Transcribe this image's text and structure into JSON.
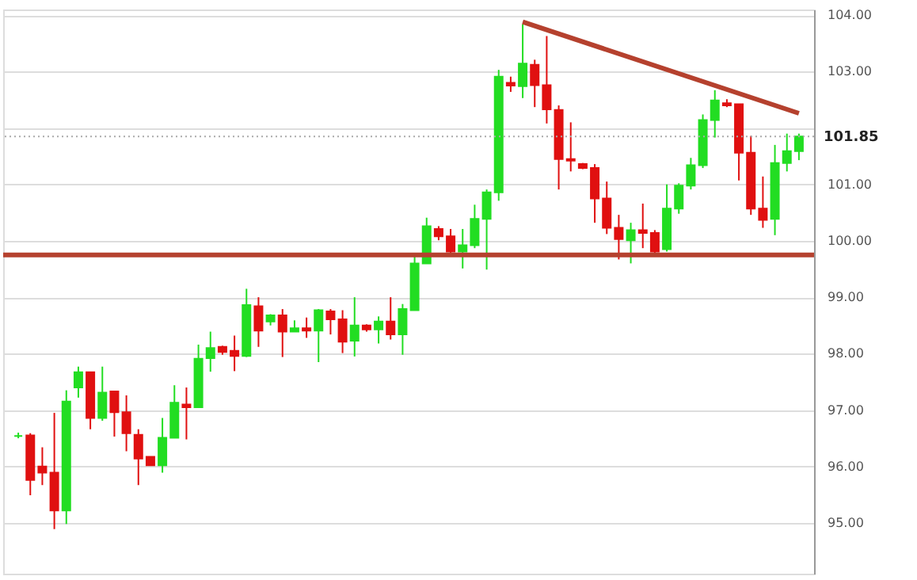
{
  "chart_data": {
    "type": "candlestick",
    "categories": [
      null,
      null,
      null,
      null,
      null,
      null,
      null,
      null,
      null,
      null,
      null,
      null,
      null,
      null,
      null,
      null,
      null,
      null,
      null,
      null,
      null,
      null,
      null,
      null,
      null,
      null,
      null,
      null,
      null,
      null,
      null,
      null,
      null,
      null,
      null,
      null,
      null,
      null,
      null,
      null,
      null,
      null,
      null,
      null,
      null,
      null,
      null,
      null,
      null,
      null,
      null,
      null,
      null,
      null,
      null,
      null,
      null,
      null,
      null,
      null,
      null,
      null,
      null,
      null,
      null,
      null
    ],
    "ohlc": [
      [
        96.54,
        96.6,
        96.5,
        96.54
      ],
      [
        96.55,
        96.59,
        95.49,
        95.76
      ],
      [
        96.0,
        96.34,
        95.67,
        95.89
      ],
      [
        95.89,
        96.95,
        94.89,
        95.22
      ],
      [
        95.22,
        97.35,
        94.98,
        97.15
      ],
      [
        97.4,
        97.77,
        97.22,
        97.67
      ],
      [
        97.67,
        97.67,
        96.66,
        96.86
      ],
      [
        96.86,
        97.77,
        96.81,
        97.31
      ],
      [
        97.33,
        97.33,
        96.53,
        96.96
      ],
      [
        96.96,
        97.26,
        96.27,
        96.59
      ],
      [
        96.56,
        96.66,
        95.67,
        96.14
      ],
      [
        96.17,
        96.17,
        96.02,
        96.02
      ],
      [
        96.02,
        96.86,
        95.89,
        96.51
      ],
      [
        96.51,
        97.44,
        96.51,
        97.13
      ],
      [
        97.1,
        97.4,
        96.48,
        97.05
      ],
      [
        97.05,
        98.16,
        97.05,
        97.91
      ],
      [
        97.92,
        98.39,
        97.68,
        98.1
      ],
      [
        98.12,
        98.14,
        97.98,
        98.03
      ],
      [
        98.05,
        98.32,
        97.69,
        97.96
      ],
      [
        97.96,
        99.15,
        97.94,
        98.86
      ],
      [
        98.84,
        99.0,
        98.12,
        98.41
      ],
      [
        98.57,
        98.7,
        98.5,
        98.68
      ],
      [
        98.68,
        98.79,
        97.94,
        98.39
      ],
      [
        98.39,
        98.59,
        98.39,
        98.45
      ],
      [
        98.45,
        98.64,
        98.28,
        98.41
      ],
      [
        98.41,
        98.79,
        97.85,
        98.77
      ],
      [
        98.75,
        98.79,
        98.34,
        98.61
      ],
      [
        98.61,
        98.77,
        98.01,
        98.21
      ],
      [
        98.23,
        99.0,
        97.95,
        98.5
      ],
      [
        98.5,
        98.52,
        98.39,
        98.43
      ],
      [
        98.43,
        98.66,
        98.18,
        98.57
      ],
      [
        98.57,
        99.0,
        98.25,
        98.34
      ],
      [
        98.34,
        98.88,
        97.98,
        98.79
      ],
      [
        98.77,
        99.78,
        98.77,
        99.6
      ],
      [
        99.6,
        100.41,
        99.6,
        100.26
      ],
      [
        100.21,
        100.26,
        100.01,
        100.08
      ],
      [
        100.08,
        100.21,
        99.74,
        99.81
      ],
      [
        99.81,
        100.21,
        99.51,
        99.92
      ],
      [
        99.92,
        100.64,
        99.87,
        100.39
      ],
      [
        100.39,
        100.91,
        99.49,
        100.86
      ],
      [
        100.86,
        103.03,
        100.71,
        102.91
      ],
      [
        102.8,
        102.91,
        102.64,
        102.75
      ],
      [
        102.74,
        103.84,
        102.53,
        103.14
      ],
      [
        103.12,
        103.21,
        102.37,
        102.76
      ],
      [
        102.76,
        103.63,
        102.08,
        102.33
      ],
      [
        102.32,
        102.4,
        100.91,
        101.45
      ],
      [
        101.45,
        102.1,
        101.23,
        101.42
      ],
      [
        101.36,
        101.38,
        101.27,
        101.29
      ],
      [
        101.29,
        101.36,
        100.32,
        100.75
      ],
      [
        100.75,
        101.05,
        100.12,
        100.23
      ],
      [
        100.23,
        100.46,
        99.67,
        100.03
      ],
      [
        100.01,
        100.32,
        99.6,
        100.19
      ],
      [
        100.19,
        100.66,
        99.87,
        100.14
      ],
      [
        100.14,
        100.19,
        99.78,
        99.81
      ],
      [
        99.85,
        101.0,
        99.81,
        100.57
      ],
      [
        100.57,
        101.02,
        100.48,
        100.98
      ],
      [
        100.98,
        101.47,
        100.91,
        101.34
      ],
      [
        101.34,
        102.24,
        101.29,
        102.14
      ],
      [
        102.14,
        102.67,
        101.83,
        102.49
      ],
      [
        102.44,
        102.51,
        102.37,
        102.4
      ],
      [
        102.42,
        102.42,
        101.07,
        101.56
      ],
      [
        101.56,
        101.86,
        100.46,
        100.57
      ],
      [
        100.57,
        101.14,
        100.23,
        100.37
      ],
      [
        100.39,
        101.7,
        100.1,
        101.38
      ],
      [
        101.38,
        101.9,
        101.23,
        101.59
      ],
      [
        101.59,
        101.9,
        101.43,
        101.85
      ]
    ],
    "colors": [
      "#22dd22",
      "#e01010",
      "#e01010",
      "#e01010",
      "#22dd22",
      "#22dd22",
      "#e01010",
      "#22dd22",
      "#e01010",
      "#e01010",
      "#e01010",
      "#e01010",
      "#22dd22",
      "#22dd22",
      "#e01010",
      "#22dd22",
      "#22dd22",
      "#e01010",
      "#e01010",
      "#22dd22",
      "#e01010",
      "#22dd22",
      "#e01010",
      "#22dd22",
      "#e01010",
      "#22dd22",
      "#e01010",
      "#e01010",
      "#22dd22",
      "#e01010",
      "#22dd22",
      "#e01010",
      "#22dd22",
      "#22dd22",
      "#22dd22",
      "#e01010",
      "#e01010",
      "#22dd22",
      "#22dd22",
      "#22dd22",
      "#22dd22",
      "#e01010",
      "#22dd22",
      "#e01010",
      "#e01010",
      "#e01010",
      "#e01010",
      "#e01010",
      "#e01010",
      "#e01010",
      "#e01010",
      "#22dd22",
      "#e01010",
      "#e01010",
      "#22dd22",
      "#22dd22",
      "#22dd22",
      "#22dd22",
      "#22dd22",
      "#e01010",
      "#e01010",
      "#e01010",
      "#e01010",
      "#22dd22",
      "#22dd22",
      "#22dd22"
    ],
    "series": [
      {
        "type": "line",
        "color": "#b5412e",
        "values": [
          null,
          null,
          null,
          null,
          null,
          null,
          null,
          null,
          null,
          null,
          null,
          null,
          null,
          null,
          null,
          null,
          null,
          null,
          null,
          null,
          null,
          null,
          null,
          null,
          null,
          null,
          null,
          null,
          null,
          null,
          null,
          null,
          null,
          null,
          null,
          null,
          null,
          null,
          null,
          null,
          null,
          null,
          103.88,
          null,
          null,
          null,
          null,
          null,
          null,
          null,
          null,
          null,
          null,
          null,
          null,
          null,
          null,
          null,
          null,
          null,
          null,
          null,
          null,
          null,
          null,
          102.26
        ]
      }
    ],
    "ref_lines": [
      {
        "axis": "y",
        "value": 99.75,
        "color": "#b5412e",
        "line_style": "solid"
      },
      {
        "axis": "y",
        "value": 101.85,
        "label": "101.85",
        "color": "#aaaaaa",
        "line_style": "dotted"
      }
    ],
    "ylim": [
      94.1,
      104.1
    ],
    "yticks": [
      {
        "value": 95,
        "label": "95.00"
      },
      {
        "value": 96,
        "label": "96.00"
      },
      {
        "value": 97,
        "label": "97.00"
      },
      {
        "value": 98,
        "label": "98.00"
      },
      {
        "value": 99,
        "label": "99.00"
      },
      {
        "value": 100,
        "label": "100.00"
      },
      {
        "value": 101,
        "label": "101.00"
      },
      {
        "value": 102,
        "label": null
      },
      {
        "value": 103,
        "label": "103.00"
      },
      {
        "value": 104,
        "label": "104.00"
      }
    ],
    "grid": "y",
    "tick_labels": "y"
  }
}
